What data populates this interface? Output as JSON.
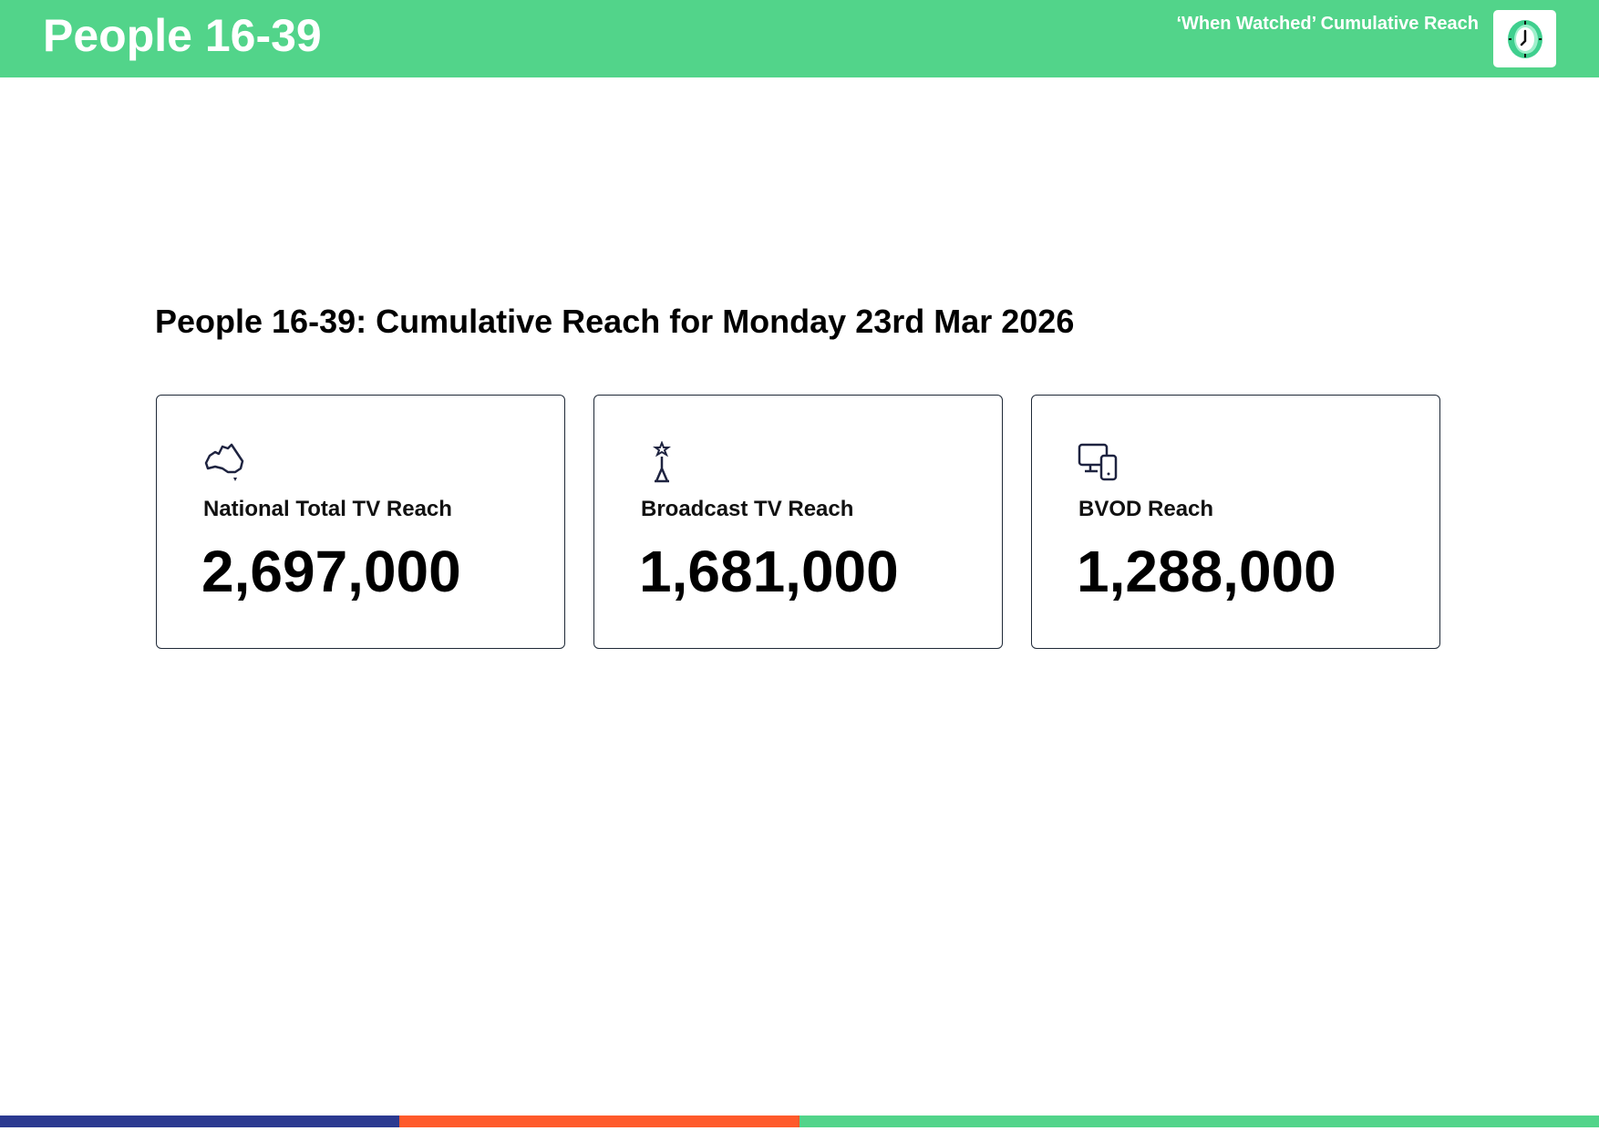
{
  "header": {
    "title": "People 16-39",
    "subtitle": "‘When Watched’ Cumulative Reach",
    "logo_icon": "clock-icon"
  },
  "section_title": "People 16-39: Cumulative Reach for Monday 23rd Mar 2026",
  "cards": [
    {
      "icon": "australia-map-icon",
      "label": "National Total TV Reach",
      "value": "2,697,000"
    },
    {
      "icon": "broadcast-tower-icon",
      "label": "Broadcast TV Reach",
      "value": "1,681,000"
    },
    {
      "icon": "devices-icon",
      "label": "BVOD Reach",
      "value": "1,288,000"
    }
  ],
  "colors": {
    "brand_green": "#52d48a",
    "navy": "#2b3990",
    "orange": "#ff5a2b"
  }
}
